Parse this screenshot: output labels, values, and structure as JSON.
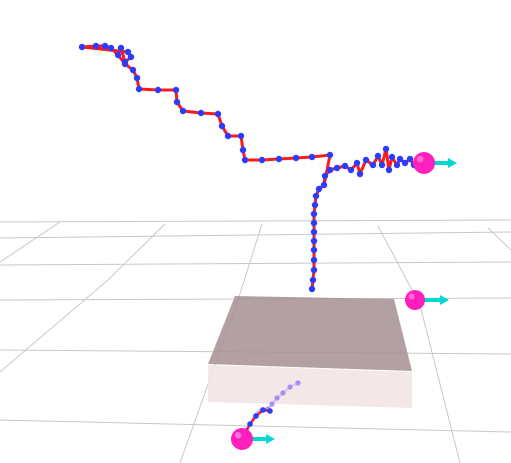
{
  "viewport": {
    "background": "#ffffff",
    "grid_color": "#c8c8c8",
    "trajectory_line_color": "#ff1a1a",
    "trajectory_point_color": "#2b3cff",
    "faded_point_color": "#a98ef5",
    "goal_marker_color": "#ff1fbd",
    "direction_arrow_color": "#00d9d0",
    "platform_top_color": "#a58f92",
    "platform_front_color": "#f2e6e4"
  },
  "objects": {
    "main_trajectory": {
      "kind": "path-trace",
      "icon": "trajectory-line-icon"
    },
    "faint_trajectory": {
      "kind": "path-trace",
      "icon": "trajectory-faded-icon"
    },
    "goal_markers": [
      {
        "name": "goal-sphere-upper-right",
        "icon": "sphere-icon",
        "arrow_icon": "arrow-right-icon"
      },
      {
        "name": "goal-sphere-middle-right",
        "icon": "sphere-icon",
        "arrow_icon": "arrow-right-icon"
      },
      {
        "name": "goal-sphere-bottom",
        "icon": "sphere-icon",
        "arrow_icon": "arrow-right-icon"
      }
    ],
    "platform": {
      "kind": "box",
      "icon": "platform-box-icon"
    }
  }
}
